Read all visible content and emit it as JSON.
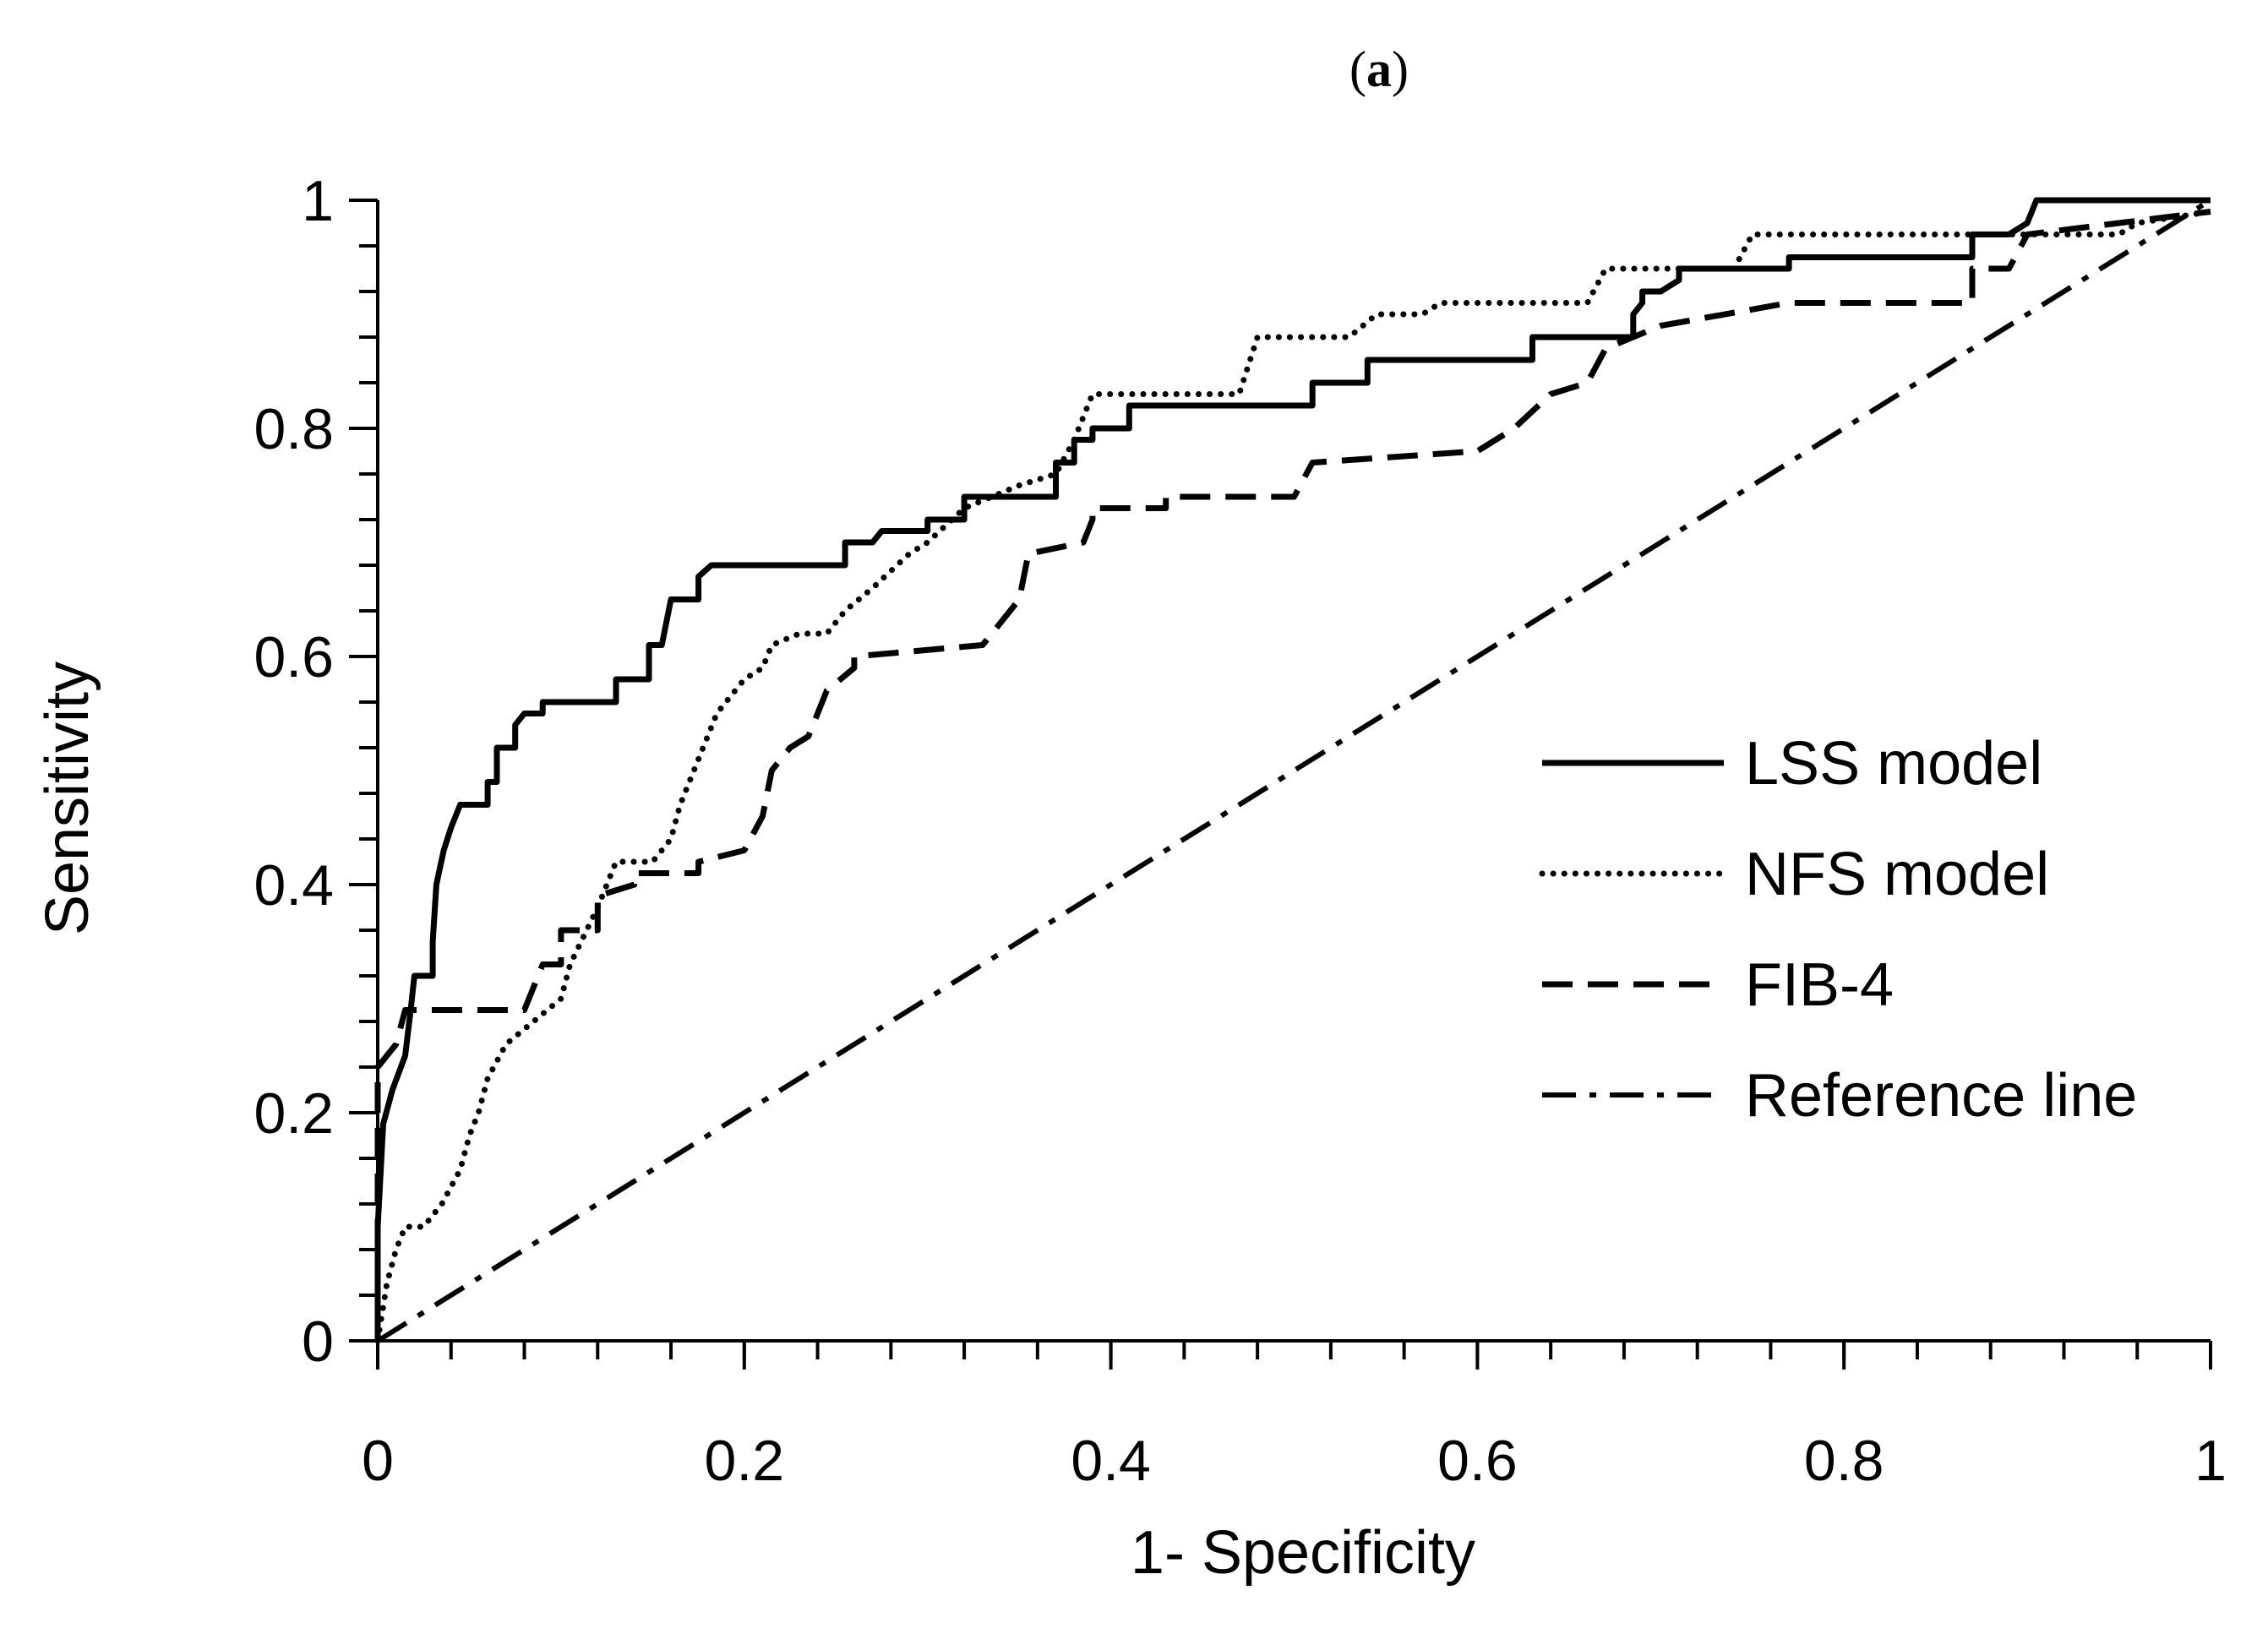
{
  "chart_data": {
    "type": "line",
    "panel_label": {
      "open": "(",
      "letter": "a",
      "close": ")"
    },
    "xlabel": "1- Specificity",
    "ylabel": "Sensitivity",
    "xlim": [
      0,
      1
    ],
    "ylim": [
      0,
      1
    ],
    "x_ticks": [
      0,
      0.2,
      0.4,
      0.6,
      0.8,
      1
    ],
    "x_tick_labels": [
      "0",
      "0.2",
      "0.4",
      "0.6",
      "0.8",
      "1"
    ],
    "y_ticks": [
      0,
      0.2,
      0.4,
      0.6,
      0.8,
      1
    ],
    "y_tick_labels": [
      "0",
      "0.2",
      "0.4",
      "0.6",
      "0.8",
      "1"
    ],
    "x_minor_step": 0.04,
    "y_minor_step": 0.04,
    "legend_position": "right",
    "series": [
      {
        "name": "LSS model",
        "style": "solid",
        "points": [
          [
            0,
            0
          ],
          [
            0,
            0.1
          ],
          [
            0.003,
            0.19
          ],
          [
            0.008,
            0.22
          ],
          [
            0.015,
            0.25
          ],
          [
            0.018,
            0.29
          ],
          [
            0.02,
            0.32
          ],
          [
            0.03,
            0.32
          ],
          [
            0.03,
            0.35
          ],
          [
            0.032,
            0.4
          ],
          [
            0.036,
            0.43
          ],
          [
            0.04,
            0.45
          ],
          [
            0.045,
            0.47
          ],
          [
            0.06,
            0.47
          ],
          [
            0.06,
            0.49
          ],
          [
            0.065,
            0.49
          ],
          [
            0.065,
            0.52
          ],
          [
            0.075,
            0.52
          ],
          [
            0.075,
            0.54
          ],
          [
            0.08,
            0.55
          ],
          [
            0.09,
            0.55
          ],
          [
            0.09,
            0.56
          ],
          [
            0.13,
            0.56
          ],
          [
            0.13,
            0.58
          ],
          [
            0.148,
            0.58
          ],
          [
            0.148,
            0.61
          ],
          [
            0.155,
            0.61
          ],
          [
            0.16,
            0.65
          ],
          [
            0.175,
            0.65
          ],
          [
            0.175,
            0.67
          ],
          [
            0.182,
            0.68
          ],
          [
            0.255,
            0.68
          ],
          [
            0.255,
            0.7
          ],
          [
            0.27,
            0.7
          ],
          [
            0.275,
            0.71
          ],
          [
            0.3,
            0.71
          ],
          [
            0.3,
            0.72
          ],
          [
            0.32,
            0.72
          ],
          [
            0.32,
            0.74
          ],
          [
            0.37,
            0.74
          ],
          [
            0.37,
            0.77
          ],
          [
            0.38,
            0.77
          ],
          [
            0.38,
            0.79
          ],
          [
            0.39,
            0.79
          ],
          [
            0.39,
            0.8
          ],
          [
            0.41,
            0.8
          ],
          [
            0.41,
            0.82
          ],
          [
            0.51,
            0.82
          ],
          [
            0.51,
            0.84
          ],
          [
            0.54,
            0.84
          ],
          [
            0.54,
            0.86
          ],
          [
            0.63,
            0.86
          ],
          [
            0.63,
            0.88
          ],
          [
            0.685,
            0.88
          ],
          [
            0.685,
            0.9
          ],
          [
            0.69,
            0.91
          ],
          [
            0.69,
            0.92
          ],
          [
            0.7,
            0.92
          ],
          [
            0.71,
            0.93
          ],
          [
            0.71,
            0.94
          ],
          [
            0.77,
            0.94
          ],
          [
            0.77,
            0.95
          ],
          [
            0.87,
            0.95
          ],
          [
            0.87,
            0.97
          ],
          [
            0.89,
            0.97
          ],
          [
            0.9,
            0.98
          ],
          [
            0.905,
            1
          ],
          [
            1,
            1
          ]
        ]
      },
      {
        "name": "NFS model",
        "style": "dotted",
        "points": [
          [
            0,
            0
          ],
          [
            0.005,
            0.05
          ],
          [
            0.01,
            0.08
          ],
          [
            0.015,
            0.1
          ],
          [
            0.025,
            0.1
          ],
          [
            0.035,
            0.12
          ],
          [
            0.045,
            0.15
          ],
          [
            0.05,
            0.18
          ],
          [
            0.055,
            0.2
          ],
          [
            0.06,
            0.23
          ],
          [
            0.07,
            0.26
          ],
          [
            0.085,
            0.28
          ],
          [
            0.1,
            0.3
          ],
          [
            0.105,
            0.33
          ],
          [
            0.12,
            0.38
          ],
          [
            0.13,
            0.42
          ],
          [
            0.15,
            0.42
          ],
          [
            0.16,
            0.44
          ],
          [
            0.165,
            0.47
          ],
          [
            0.175,
            0.51
          ],
          [
            0.185,
            0.55
          ],
          [
            0.2,
            0.58
          ],
          [
            0.21,
            0.59
          ],
          [
            0.215,
            0.61
          ],
          [
            0.23,
            0.62
          ],
          [
            0.245,
            0.62
          ],
          [
            0.255,
            0.64
          ],
          [
            0.27,
            0.66
          ],
          [
            0.29,
            0.69
          ],
          [
            0.3,
            0.7
          ],
          [
            0.32,
            0.73
          ],
          [
            0.35,
            0.75
          ],
          [
            0.37,
            0.76
          ],
          [
            0.38,
            0.79
          ],
          [
            0.39,
            0.83
          ],
          [
            0.47,
            0.83
          ],
          [
            0.48,
            0.88
          ],
          [
            0.53,
            0.88
          ],
          [
            0.545,
            0.9
          ],
          [
            0.57,
            0.9
          ],
          [
            0.58,
            0.91
          ],
          [
            0.66,
            0.91
          ],
          [
            0.67,
            0.94
          ],
          [
            0.74,
            0.94
          ],
          [
            0.75,
            0.97
          ],
          [
            0.9,
            0.97
          ],
          [
            0.92,
            0.97
          ],
          [
            0.95,
            0.97
          ],
          [
            0.96,
            0.98
          ],
          [
            1,
            0.99
          ]
        ]
      },
      {
        "name": "FIB-4",
        "style": "dashed",
        "points": [
          [
            0,
            0
          ],
          [
            0,
            0.24
          ],
          [
            0.01,
            0.26
          ],
          [
            0.015,
            0.29
          ],
          [
            0.08,
            0.29
          ],
          [
            0.085,
            0.31
          ],
          [
            0.09,
            0.33
          ],
          [
            0.1,
            0.33
          ],
          [
            0.1,
            0.36
          ],
          [
            0.12,
            0.36
          ],
          [
            0.12,
            0.39
          ],
          [
            0.14,
            0.4
          ],
          [
            0.14,
            0.41
          ],
          [
            0.175,
            0.41
          ],
          [
            0.175,
            0.42
          ],
          [
            0.2,
            0.43
          ],
          [
            0.21,
            0.46
          ],
          [
            0.215,
            0.5
          ],
          [
            0.225,
            0.52
          ],
          [
            0.235,
            0.53
          ],
          [
            0.245,
            0.57
          ],
          [
            0.26,
            0.59
          ],
          [
            0.26,
            0.6
          ],
          [
            0.33,
            0.61
          ],
          [
            0.35,
            0.65
          ],
          [
            0.355,
            0.69
          ],
          [
            0.385,
            0.7
          ],
          [
            0.39,
            0.72
          ],
          [
            0.39,
            0.73
          ],
          [
            0.43,
            0.73
          ],
          [
            0.43,
            0.74
          ],
          [
            0.5,
            0.74
          ],
          [
            0.51,
            0.77
          ],
          [
            0.6,
            0.78
          ],
          [
            0.62,
            0.8
          ],
          [
            0.64,
            0.83
          ],
          [
            0.66,
            0.84
          ],
          [
            0.67,
            0.87
          ],
          [
            0.7,
            0.89
          ],
          [
            0.77,
            0.91
          ],
          [
            0.87,
            0.91
          ],
          [
            0.87,
            0.94
          ],
          [
            0.89,
            0.94
          ],
          [
            0.9,
            0.97
          ],
          [
            0.95,
            0.98
          ],
          [
            1,
            0.99
          ]
        ]
      },
      {
        "name": "Reference line",
        "style": "dash-dot",
        "points": [
          [
            0,
            0
          ],
          [
            1,
            1
          ]
        ]
      }
    ]
  }
}
